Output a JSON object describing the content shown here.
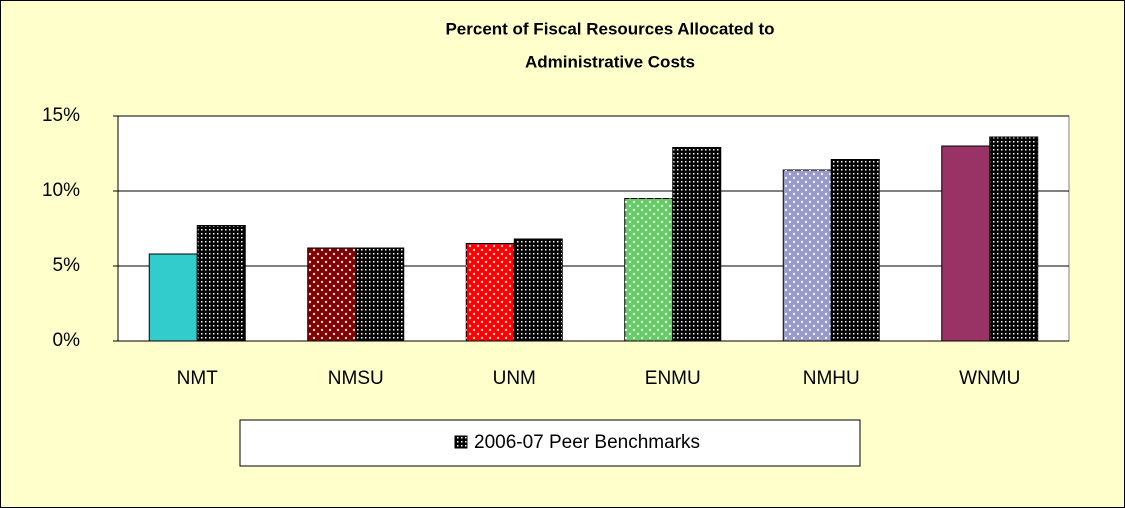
{
  "chart_data": {
    "type": "bar",
    "title": [
      "Percent of Fiscal Resources Allocated to",
      "Administrative Costs"
    ],
    "categories": [
      "NMT",
      "NMSU",
      "UNM",
      "ENMU",
      "NMHU",
      "WNMU"
    ],
    "series": [
      {
        "colors": [
          "#33CCCC",
          "#800000",
          "#FF0000",
          "#66CC66",
          "#9999CC",
          "#993366"
        ],
        "values": [
          5.8,
          6.2,
          6.5,
          9.5,
          11.4,
          13.0
        ]
      },
      {
        "name": "2006-07 Peer Benchmarks",
        "color": "#000000",
        "values": [
          7.7,
          6.2,
          6.8,
          12.9,
          12.1,
          13.6
        ]
      }
    ],
    "ylim": [
      0,
      15
    ],
    "yticks": [
      {
        "value": 0,
        "label": "0%"
      },
      {
        "value": 5,
        "label": "5%"
      },
      {
        "value": 10,
        "label": "10%"
      },
      {
        "value": 15,
        "label": "15%"
      }
    ],
    "grid": true,
    "legend": "bottom"
  }
}
